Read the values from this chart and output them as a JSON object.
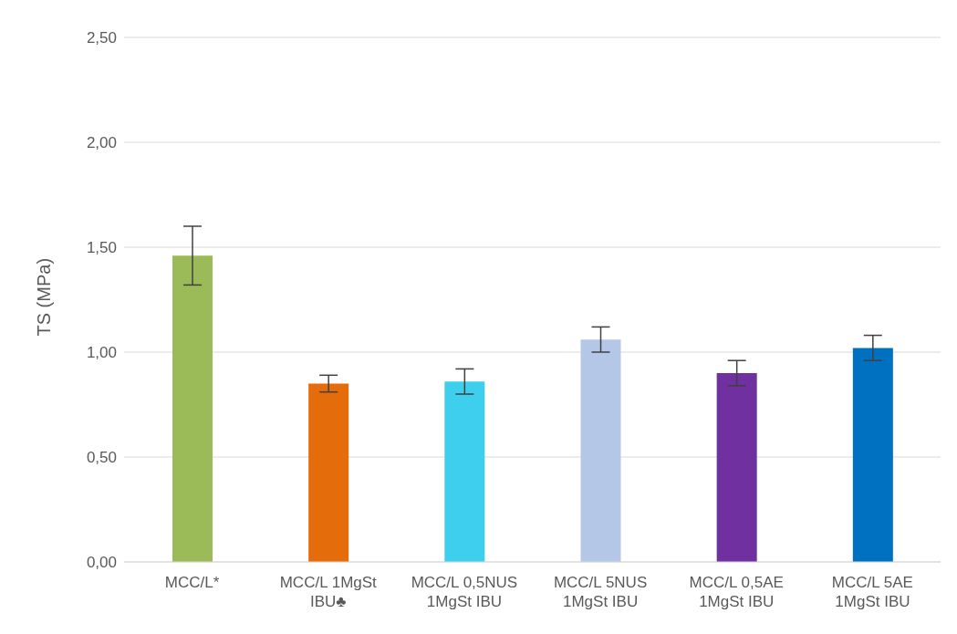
{
  "chart_data": {
    "type": "bar",
    "ylabel": "TS (MPa)",
    "categories": [
      "MCC/L*",
      "MCC/L 1MgSt IBU♣",
      "MCC/L 0,5NUS 1MgSt IBU",
      "MCC/L 5NUS 1MgSt IBU",
      "MCC/L 0,5AE 1MgSt IBU",
      "MCC/L 5AE 1MgSt IBU"
    ],
    "values": [
      1.46,
      0.85,
      0.86,
      1.06,
      0.9,
      1.02
    ],
    "errors": [
      0.14,
      0.04,
      0.06,
      0.06,
      0.06,
      0.06
    ],
    "colors": [
      "#9bbb59",
      "#e46c0a",
      "#3ecfee",
      "#b4c7e7",
      "#7030a0",
      "#0070c0"
    ],
    "ylim": [
      0,
      2.5
    ],
    "yticks": [
      {
        "value": 0,
        "label": "0,00"
      },
      {
        "value": 0.5,
        "label": "0,50"
      },
      {
        "value": 1,
        "label": "1,00"
      },
      {
        "value": 1.5,
        "label": "1,50"
      },
      {
        "value": 2,
        "label": "2,00"
      },
      {
        "value": 2.5,
        "label": "2,50"
      }
    ],
    "grid": "y",
    "legend": false
  }
}
